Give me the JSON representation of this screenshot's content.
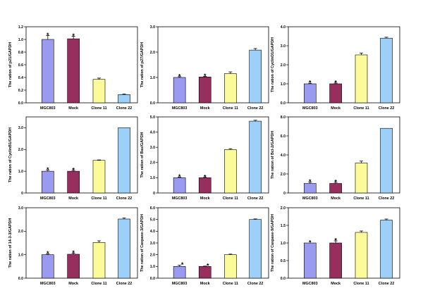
{
  "colors": {
    "MGC803": "#9a9af0",
    "Mock": "#962f5e",
    "Clone 11": "#fbfb9a",
    "Clone 22": "#9cd0f8"
  },
  "chart_data": [
    {
      "type": "bar",
      "categories": [
        "MGC803",
        "Mock",
        "Clone 11",
        "Clone 22"
      ],
      "values": [
        1.0,
        1.01,
        0.37,
        0.13
      ],
      "errors": [
        0.06,
        0.04,
        0.02,
        0.01
      ],
      "significant": [
        true,
        true,
        false,
        false
      ],
      "ylabel": "The ration of p21/GAPDH",
      "ylim": [
        0,
        1.2
      ],
      "yticks": [
        "0.0",
        "0.2",
        "0.4",
        "0.6",
        "0.8",
        "1.0",
        "1.2"
      ]
    },
    {
      "type": "bar",
      "categories": [
        "MGC803",
        "Mock",
        "Clone 11",
        "Clone 22"
      ],
      "values": [
        1.0,
        1.02,
        1.15,
        2.08
      ],
      "errors": [
        0.03,
        0.02,
        0.07,
        0.06
      ],
      "significant": [
        true,
        true,
        false,
        false
      ],
      "ylabel": "The ration of p27/GAPDH",
      "ylim": [
        0,
        3.0
      ],
      "yticks": [
        "0.0",
        "1.0",
        "2.0",
        "3.0"
      ]
    },
    {
      "type": "bar",
      "categories": [
        "MGC803",
        "Mock",
        "Clone 11",
        "Clone 22"
      ],
      "values": [
        1.0,
        1.0,
        2.52,
        3.4
      ],
      "errors": [
        0.03,
        0.04,
        0.1,
        0.05
      ],
      "significant": [
        true,
        true,
        false,
        false
      ],
      "ylabel": "The ration of CyclinD1/GAPDH",
      "ylim": [
        0,
        4.0
      ],
      "yticks": [
        "0.0",
        "1.0",
        "2.0",
        "3.0",
        "4.0"
      ]
    },
    {
      "type": "bar",
      "categories": [
        "MGC803",
        "Mock",
        "Clone 11",
        "Clone 22"
      ],
      "values": [
        1.0,
        1.0,
        1.5,
        3.0
      ],
      "errors": [
        0.05,
        0.04,
        0.02,
        0.0
      ],
      "significant": [
        true,
        true,
        false,
        false
      ],
      "ylabel": "The ration of CyclinB1/GAPDH",
      "ylim": [
        0,
        3.5
      ],
      "yticks": [
        "0",
        "1.0",
        "2.0",
        "3.0"
      ]
    },
    {
      "type": "bar",
      "categories": [
        "MGC803",
        "Mock",
        "Clone 11",
        "Clone 22"
      ],
      "values": [
        1.0,
        1.0,
        2.85,
        4.72
      ],
      "errors": [
        0.04,
        0.03,
        0.06,
        0.06
      ],
      "significant": [
        true,
        true,
        false,
        false
      ],
      "ylabel": "The ration of Bax/GAPDH",
      "ylim": [
        0,
        5.0
      ],
      "yticks": [
        "0",
        "1.0",
        "2.0",
        "3.0",
        "4.0",
        "5.0"
      ]
    },
    {
      "type": "bar",
      "categories": [
        "MGC803",
        "Mock",
        "Clone 11",
        "Clone 22"
      ],
      "values": [
        1.0,
        1.0,
        3.15,
        6.8
      ],
      "errors": [
        0.15,
        0.12,
        0.2,
        0.0
      ],
      "significant": [
        true,
        true,
        false,
        false
      ],
      "ylabel": "The ration of Bcl-2/GAPDH",
      "ylim": [
        0,
        8.0
      ],
      "yticks": [
        "0",
        "2.0",
        "4.0",
        "6.0",
        "8.0"
      ]
    },
    {
      "type": "bar",
      "categories": [
        "MGC803",
        "Mock",
        "Clone 11",
        "Clone 22"
      ],
      "values": [
        1.0,
        1.02,
        1.52,
        2.52
      ],
      "errors": [
        0.03,
        0.05,
        0.07,
        0.04
      ],
      "significant": [
        true,
        true,
        false,
        false
      ],
      "ylabel": "The ration of 14-3-3/GAPDH",
      "ylim": [
        0,
        3.0
      ],
      "yticks": [
        "0.0",
        "1.0",
        "2.0",
        "3.0"
      ]
    },
    {
      "type": "bar",
      "categories": [
        "MGC803",
        "Mock",
        "Clone 11",
        "Clone 22"
      ],
      "values": [
        1.0,
        1.0,
        2.0,
        5.0
      ],
      "errors": [
        0.1,
        0.03,
        0.05,
        0.05
      ],
      "significant": [
        true,
        true,
        false,
        false
      ],
      "ylabel": "The ration of Caspase-3/GAPDH",
      "ylim": [
        0,
        6.0
      ],
      "yticks": [
        "0.0",
        "1.0",
        "2.0",
        "3.0",
        "4.0",
        "5.0",
        "6.0"
      ]
    },
    {
      "type": "bar",
      "categories": [
        "MGC803",
        "Mock",
        "Clone 11",
        "Clone 22"
      ],
      "values": [
        1.0,
        1.0,
        1.3,
        1.65
      ],
      "errors": [
        0.0,
        0.06,
        0.04,
        0.03
      ],
      "significant": [
        true,
        true,
        false,
        false
      ],
      "ylabel": "The ration of Caspase-9/GAPDH",
      "ylim": [
        0,
        2.0
      ],
      "yticks": [
        "0.0",
        "0.5",
        "1.0",
        "1.5",
        "2.0"
      ]
    }
  ]
}
